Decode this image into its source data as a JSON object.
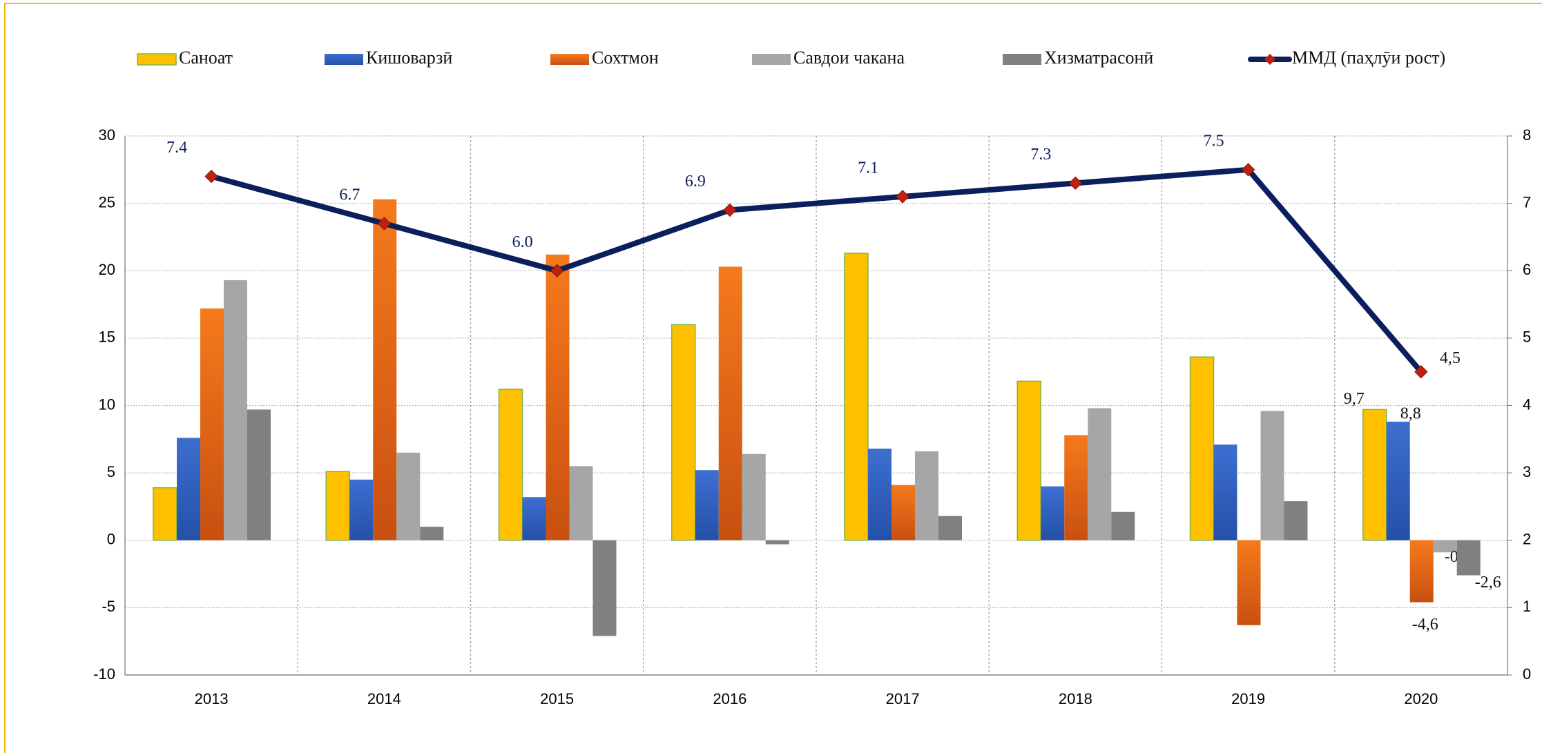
{
  "chart_data": {
    "type": "bar",
    "categories": [
      "2013",
      "2014",
      "2015",
      "2016",
      "2017",
      "2018",
      "2019",
      "2020"
    ],
    "series": [
      {
        "name": "Саноат",
        "color": "#ffc000",
        "values": [
          3.9,
          5.1,
          11.2,
          16.0,
          21.3,
          11.8,
          13.6,
          9.7
        ],
        "value_labels": [
          null,
          null,
          null,
          null,
          null,
          null,
          null,
          "9,7"
        ]
      },
      {
        "name": "Кишоварзӣ",
        "color": "#3d6fd0",
        "values": [
          7.6,
          4.5,
          3.2,
          5.2,
          6.8,
          4.0,
          7.1,
          8.8
        ],
        "value_labels": [
          null,
          null,
          null,
          null,
          null,
          null,
          null,
          "8,8"
        ]
      },
      {
        "name": "Сохтмон",
        "color": "#f57a1c",
        "values": [
          17.2,
          25.3,
          21.2,
          20.3,
          4.1,
          7.8,
          -6.3,
          -4.6
        ],
        "value_labels": [
          null,
          null,
          null,
          null,
          null,
          null,
          null,
          "-4,6"
        ]
      },
      {
        "name": "Савдои чакана",
        "color": "#a6a6a6",
        "values": [
          19.3,
          6.5,
          5.5,
          6.4,
          6.6,
          9.8,
          9.6,
          -0.9
        ],
        "value_labels": [
          null,
          null,
          null,
          null,
          null,
          null,
          null,
          "-0,9"
        ]
      },
      {
        "name": "Хизматрасонӣ",
        "color": "#808080",
        "values": [
          9.7,
          1.0,
          -7.1,
          -0.3,
          1.8,
          2.1,
          2.9,
          -2.6
        ],
        "value_labels": [
          null,
          null,
          null,
          null,
          null,
          null,
          null,
          "-2,6"
        ]
      },
      {
        "name": "ММД (паҳлӯи рост)",
        "type": "line",
        "axis": "y2",
        "color": "#0b1f5c",
        "marker_color": "#c0200f",
        "values": [
          7.4,
          6.7,
          6.0,
          6.9,
          7.1,
          7.3,
          7.5,
          4.5
        ],
        "value_labels": [
          "7.4",
          "6.7",
          "6.0",
          "6.9",
          "7.1",
          "7.3",
          "7.5",
          "4,5"
        ]
      }
    ],
    "ylim": [
      -10,
      30
    ],
    "yticks": [
      -10,
      -5,
      0,
      5,
      10,
      15,
      20,
      25,
      30
    ],
    "y2lim": [
      0,
      8
    ],
    "y2ticks": [
      0,
      1,
      2,
      3,
      4,
      5,
      6,
      7,
      8
    ],
    "grid": true,
    "legend": "top"
  }
}
